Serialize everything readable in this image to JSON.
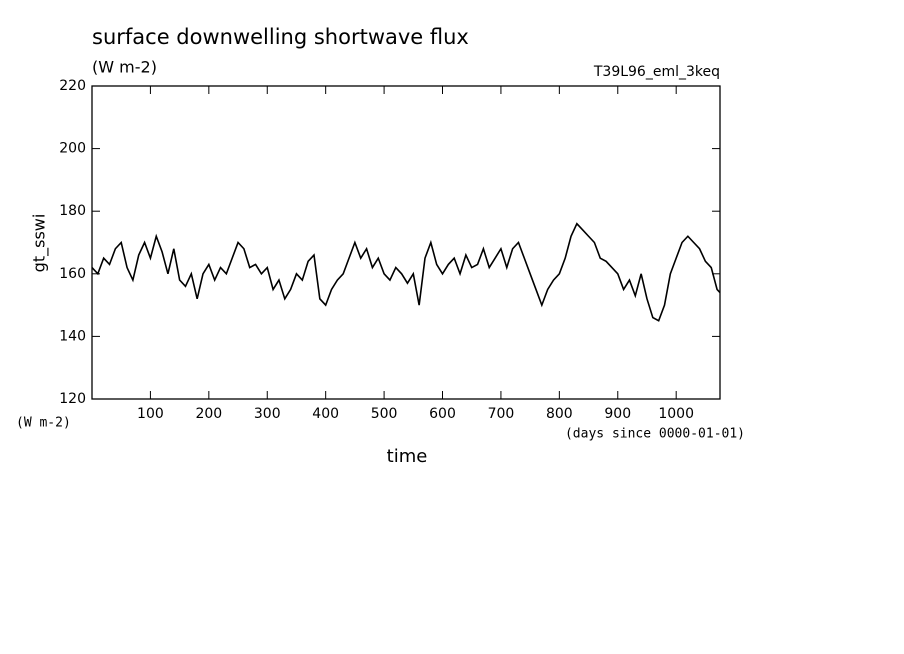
{
  "chart_data": {
    "type": "line",
    "title": "surface downwelling shortwave flux",
    "subtitle": "(W m-2)",
    "run_label": "T39L96_eml_3keq",
    "y_label": "gt_sswi",
    "y_unit": "(W m-2)",
    "x_label": "time",
    "x_unit": "(days since 0000-01-01)",
    "color": "#000000",
    "xlim": [
      0,
      1075
    ],
    "ylim": [
      120,
      220
    ],
    "xticks": [
      100,
      200,
      300,
      400,
      500,
      600,
      700,
      800,
      900,
      1000
    ],
    "yticks": [
      120,
      140,
      160,
      180,
      200,
      220
    ],
    "x": [
      0,
      10,
      20,
      30,
      40,
      50,
      60,
      70,
      80,
      90,
      100,
      110,
      120,
      130,
      140,
      150,
      160,
      170,
      180,
      190,
      200,
      210,
      220,
      230,
      240,
      250,
      260,
      270,
      280,
      290,
      300,
      310,
      320,
      330,
      340,
      350,
      360,
      370,
      380,
      390,
      400,
      410,
      420,
      430,
      440,
      450,
      460,
      470,
      480,
      490,
      500,
      510,
      520,
      530,
      540,
      550,
      560,
      570,
      580,
      590,
      600,
      610,
      620,
      630,
      640,
      650,
      660,
      670,
      680,
      690,
      700,
      710,
      720,
      730,
      740,
      750,
      760,
      770,
      780,
      790,
      800,
      810,
      820,
      830,
      840,
      850,
      860,
      870,
      880,
      890,
      900,
      910,
      920,
      930,
      940,
      950,
      960,
      970,
      980,
      990,
      1000,
      1010,
      1020,
      1030,
      1040,
      1050,
      1060,
      1070,
      1075
    ],
    "values": [
      162,
      160,
      165,
      163,
      168,
      170,
      162,
      158,
      166,
      170,
      165,
      172,
      167,
      160,
      168,
      158,
      156,
      160,
      152,
      160,
      163,
      158,
      162,
      160,
      165,
      170,
      168,
      162,
      163,
      160,
      162,
      155,
      158,
      152,
      155,
      160,
      158,
      164,
      166,
      152,
      150,
      155,
      158,
      160,
      165,
      170,
      165,
      168,
      162,
      165,
      160,
      158,
      162,
      160,
      157,
      160,
      150,
      165,
      170,
      163,
      160,
      163,
      165,
      160,
      166,
      162,
      163,
      168,
      162,
      165,
      168,
      162,
      168,
      170,
      165,
      160,
      155,
      150,
      155,
      158,
      160,
      165,
      172,
      176,
      174,
      172,
      170,
      165,
      164,
      162,
      160,
      155,
      158,
      153,
      160,
      152,
      146,
      145,
      150,
      160,
      165,
      170,
      172,
      170,
      168,
      164,
      162,
      155,
      154
    ]
  }
}
